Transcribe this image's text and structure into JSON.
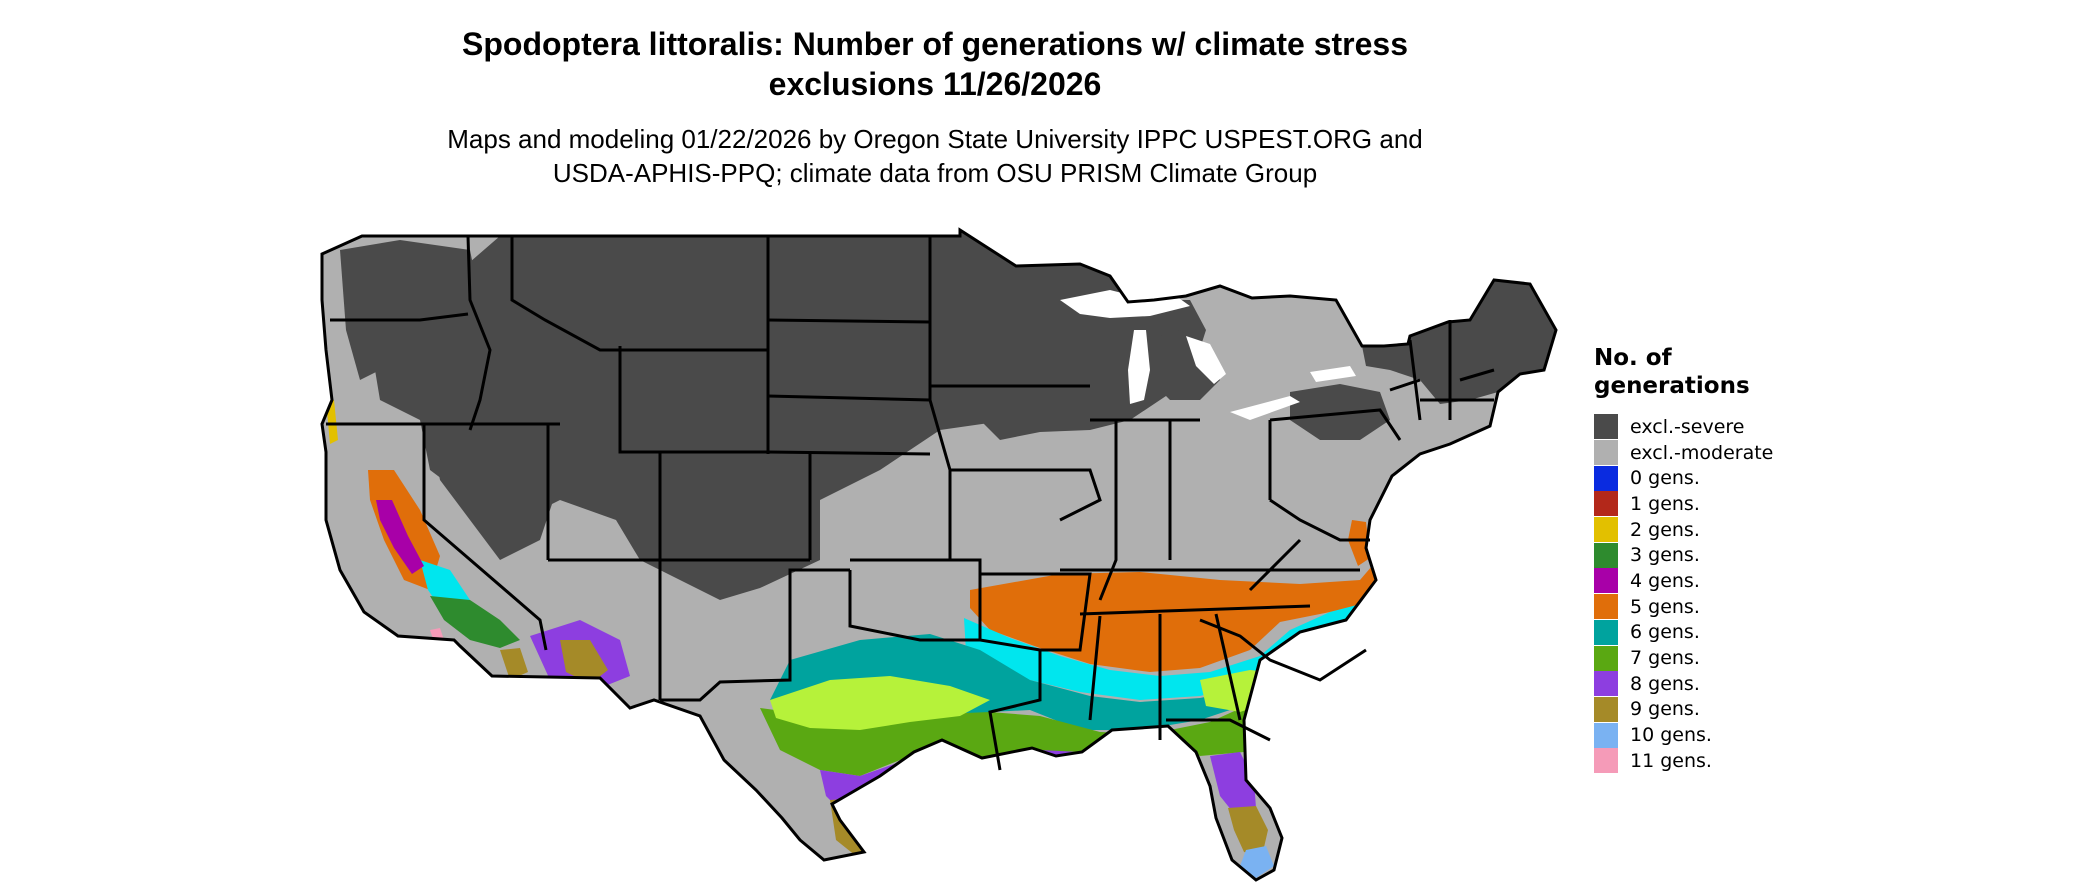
{
  "title": {
    "line1": "Spodoptera littoralis: Number of generations w/ climate stress",
    "line2": "exclusions 11/26/2026"
  },
  "subtitle": {
    "line1": "Maps and modeling 01/22/2026 by Oregon State University IPPC USPEST.ORG and",
    "line2": "USDA-APHIS-PPQ; climate data from OSU PRISM Climate Group"
  },
  "legend": {
    "title_line1": "No. of",
    "title_line2": "generations",
    "items": [
      {
        "label": "excl.-severe",
        "color": "#4a4a4a"
      },
      {
        "label": "excl.-moderate",
        "color": "#b0b0b0"
      },
      {
        "label": "0 gens.",
        "color": "#0a2be0"
      },
      {
        "label": "1 gens.",
        "color": "#b3281a"
      },
      {
        "label": "2 gens.",
        "color": "#e2c000"
      },
      {
        "label": "3 gens.",
        "color": "#2e8b2e"
      },
      {
        "label": "4 gens.",
        "color": "#a800a8"
      },
      {
        "label": "5 gens.",
        "color": "#e06e0a"
      },
      {
        "label": "6 gens.",
        "color": "#00a39e"
      },
      {
        "label": "7 gens.",
        "color": "#5aa812"
      },
      {
        "label": "8 gens.",
        "color": "#8d3ee0"
      },
      {
        "label": "9 gens.",
        "color": "#a58a28"
      },
      {
        "label": "10 gens.",
        "color": "#7ab2f2"
      },
      {
        "label": "11 gens.",
        "color": "#f59bb8"
      }
    ]
  },
  "map": {
    "colors": {
      "severe": "#4a4a4a",
      "moderate": "#b0b0b0",
      "g2": "#e2c000",
      "g3": "#2e8b2e",
      "g4": "#a800a8",
      "g5": "#e06e0a",
      "g6": "#00a39e",
      "g6_cyan": "#00e6ee",
      "g7": "#5aa812",
      "g7_lime": "#b6f23a",
      "g8": "#8d3ee0",
      "g9": "#a58a28",
      "g9_light": "#d8c890",
      "g10": "#7ab2f2",
      "g11": "#f59bb8",
      "border": "#000000",
      "water": "#ffffff"
    }
  }
}
